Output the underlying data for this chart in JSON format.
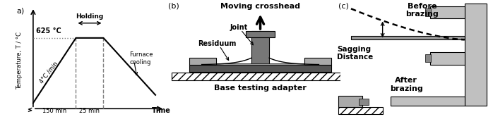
{
  "panel_a": {
    "label": "a)",
    "xlabel": "Time",
    "ylabel": "Temperature, T / °C",
    "temp_label": "625 °C",
    "rate_label": "4°C /min",
    "holding_label": "Holding",
    "furnace_label": "Furnace\ncooling",
    "t1_label": "150 min",
    "t2_label": "25 min"
  },
  "panel_b": {
    "label": "(b)",
    "crosshead_label": "Moving crosshead",
    "joint_label": "Joint",
    "residuum_label": "Residuum",
    "base_label": "Base testing adapter"
  },
  "panel_c": {
    "label": "(c)",
    "before_label": "Before\nbrazing",
    "after_label": "After\nbrazing",
    "sagging_label": "Sagging\nDistance"
  },
  "bg_color": "#ffffff"
}
